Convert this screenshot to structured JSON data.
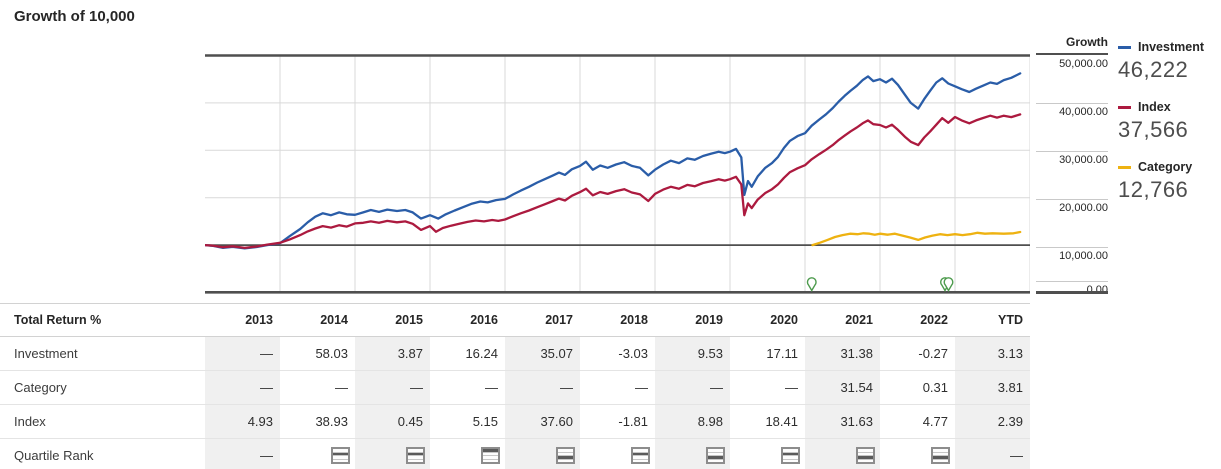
{
  "title": "Growth of 10,000",
  "colors": {
    "investment": "#2a5da8",
    "index": "#ac1a3f",
    "category": "#eeb211",
    "marker_green": "#4d9b4d",
    "dark_line": "#4f4f4f",
    "grid_line": "#d9d9d9",
    "shade": "#f0f0f0"
  },
  "axis": {
    "header": "Growth",
    "ticks": [
      "50,000.00",
      "40,000.00",
      "30,000.00",
      "20,000.00",
      "10,000.00",
      "0.00"
    ]
  },
  "legend": {
    "items": [
      {
        "name": "Investment",
        "value": "46,222",
        "color": "#2a5da8"
      },
      {
        "name": "Index",
        "value": "37,566",
        "color": "#ac1a3f"
      },
      {
        "name": "Category",
        "value": "12,766",
        "color": "#eeb211"
      }
    ]
  },
  "chart_data": {
    "type": "line",
    "title": "Growth of 10,000",
    "ylabel": "Growth",
    "ylim": [
      0,
      50000
    ],
    "y_ticks": [
      0,
      10000,
      20000,
      30000,
      40000,
      50000
    ],
    "baseline_value": 10000,
    "x_years": [
      2013,
      2014,
      2015,
      2016,
      2017,
      2018,
      2019,
      2020,
      2021,
      2022,
      2023
    ],
    "x_end": 2024,
    "legend_position": "right",
    "grid": true,
    "series": [
      {
        "name": "Investment",
        "color": "#2a5da8",
        "final_value": 46222,
        "points": [
          [
            2013.0,
            10000
          ],
          [
            2013.1,
            9850
          ],
          [
            2013.24,
            9400
          ],
          [
            2013.37,
            9650
          ],
          [
            2013.53,
            9300
          ],
          [
            2013.69,
            9600
          ],
          [
            2013.83,
            10000
          ],
          [
            2014.0,
            10400
          ],
          [
            2014.13,
            11900
          ],
          [
            2014.27,
            13400
          ],
          [
            2014.37,
            14800
          ],
          [
            2014.47,
            16000
          ],
          [
            2014.57,
            16700
          ],
          [
            2014.68,
            16300
          ],
          [
            2014.79,
            16900
          ],
          [
            2014.89,
            16500
          ],
          [
            2015.0,
            16400
          ],
          [
            2015.11,
            16900
          ],
          [
            2015.21,
            17400
          ],
          [
            2015.32,
            17000
          ],
          [
            2015.43,
            17500
          ],
          [
            2015.56,
            17200
          ],
          [
            2015.67,
            17400
          ],
          [
            2015.77,
            16900
          ],
          [
            2015.88,
            15600
          ],
          [
            2016.0,
            16300
          ],
          [
            2016.11,
            15600
          ],
          [
            2016.21,
            16500
          ],
          [
            2016.33,
            17300
          ],
          [
            2016.44,
            18000
          ],
          [
            2016.55,
            18700
          ],
          [
            2016.67,
            19200
          ],
          [
            2016.77,
            19000
          ],
          [
            2016.88,
            19500
          ],
          [
            2017.0,
            19750
          ],
          [
            2017.11,
            20700
          ],
          [
            2017.21,
            21500
          ],
          [
            2017.32,
            22300
          ],
          [
            2017.43,
            23200
          ],
          [
            2017.53,
            23900
          ],
          [
            2017.64,
            24700
          ],
          [
            2017.72,
            25300
          ],
          [
            2017.8,
            24800
          ],
          [
            2017.89,
            26000
          ],
          [
            2018.0,
            26700
          ],
          [
            2018.08,
            27600
          ],
          [
            2018.17,
            25900
          ],
          [
            2018.27,
            26800
          ],
          [
            2018.37,
            26300
          ],
          [
            2018.48,
            27000
          ],
          [
            2018.59,
            27500
          ],
          [
            2018.69,
            26700
          ],
          [
            2018.8,
            26300
          ],
          [
            2018.91,
            24700
          ],
          [
            2019.0,
            25900
          ],
          [
            2019.11,
            27000
          ],
          [
            2019.21,
            27800
          ],
          [
            2019.32,
            27300
          ],
          [
            2019.43,
            28300
          ],
          [
            2019.53,
            28000
          ],
          [
            2019.64,
            28800
          ],
          [
            2019.75,
            29300
          ],
          [
            2019.85,
            29700
          ],
          [
            2019.93,
            29400
          ],
          [
            2020.0,
            29700
          ],
          [
            2020.08,
            30300
          ],
          [
            2020.15,
            28500
          ],
          [
            2020.19,
            20600
          ],
          [
            2020.24,
            23500
          ],
          [
            2020.29,
            22300
          ],
          [
            2020.37,
            24500
          ],
          [
            2020.47,
            26300
          ],
          [
            2020.56,
            27300
          ],
          [
            2020.64,
            28600
          ],
          [
            2020.72,
            30500
          ],
          [
            2020.8,
            32000
          ],
          [
            2020.9,
            33000
          ],
          [
            2021.0,
            33600
          ],
          [
            2021.09,
            35200
          ],
          [
            2021.19,
            36500
          ],
          [
            2021.28,
            37600
          ],
          [
            2021.37,
            38900
          ],
          [
            2021.45,
            40300
          ],
          [
            2021.53,
            41500
          ],
          [
            2021.61,
            42600
          ],
          [
            2021.69,
            43600
          ],
          [
            2021.77,
            44800
          ],
          [
            2021.84,
            45600
          ],
          [
            2021.91,
            44600
          ],
          [
            2022.0,
            45000
          ],
          [
            2022.08,
            44300
          ],
          [
            2022.16,
            45100
          ],
          [
            2022.24,
            43800
          ],
          [
            2022.33,
            41800
          ],
          [
            2022.41,
            40000
          ],
          [
            2022.51,
            38800
          ],
          [
            2022.59,
            40800
          ],
          [
            2022.67,
            42600
          ],
          [
            2022.75,
            44300
          ],
          [
            2022.83,
            45200
          ],
          [
            2022.91,
            44100
          ],
          [
            2023.0,
            43500
          ],
          [
            2023.09,
            42900
          ],
          [
            2023.19,
            42300
          ],
          [
            2023.28,
            43000
          ],
          [
            2023.37,
            43600
          ],
          [
            2023.47,
            44300
          ],
          [
            2023.56,
            44000
          ],
          [
            2023.65,
            44800
          ],
          [
            2023.75,
            45300
          ],
          [
            2023.87,
            46222
          ]
        ]
      },
      {
        "name": "Index",
        "color": "#ac1a3f",
        "final_value": 37566,
        "points": [
          [
            2013.0,
            10000
          ],
          [
            2013.1,
            9900
          ],
          [
            2013.24,
            9550
          ],
          [
            2013.37,
            9750
          ],
          [
            2013.53,
            9400
          ],
          [
            2013.69,
            9700
          ],
          [
            2013.83,
            10100
          ],
          [
            2014.0,
            10490
          ],
          [
            2014.13,
            11200
          ],
          [
            2014.27,
            12100
          ],
          [
            2014.37,
            12900
          ],
          [
            2014.47,
            13500
          ],
          [
            2014.57,
            14000
          ],
          [
            2014.68,
            13700
          ],
          [
            2014.79,
            14200
          ],
          [
            2014.89,
            13900
          ],
          [
            2015.0,
            14580
          ],
          [
            2015.11,
            14700
          ],
          [
            2015.21,
            15000
          ],
          [
            2015.32,
            14700
          ],
          [
            2015.43,
            15100
          ],
          [
            2015.56,
            14800
          ],
          [
            2015.67,
            15000
          ],
          [
            2015.77,
            14500
          ],
          [
            2015.88,
            13200
          ],
          [
            2016.0,
            14000
          ],
          [
            2016.08,
            12800
          ],
          [
            2016.17,
            13600
          ],
          [
            2016.28,
            14100
          ],
          [
            2016.39,
            14500
          ],
          [
            2016.5,
            14900
          ],
          [
            2016.61,
            15200
          ],
          [
            2016.72,
            15000
          ],
          [
            2016.83,
            15300
          ],
          [
            2016.91,
            15100
          ],
          [
            2017.0,
            15400
          ],
          [
            2017.11,
            16100
          ],
          [
            2017.21,
            16700
          ],
          [
            2017.32,
            17300
          ],
          [
            2017.43,
            18000
          ],
          [
            2017.53,
            18600
          ],
          [
            2017.64,
            19300
          ],
          [
            2017.72,
            19800
          ],
          [
            2017.8,
            19400
          ],
          [
            2017.89,
            20400
          ],
          [
            2018.0,
            21190
          ],
          [
            2018.08,
            21900
          ],
          [
            2018.17,
            20500
          ],
          [
            2018.27,
            21200
          ],
          [
            2018.37,
            20800
          ],
          [
            2018.48,
            21400
          ],
          [
            2018.59,
            21800
          ],
          [
            2018.69,
            21100
          ],
          [
            2018.8,
            20700
          ],
          [
            2018.91,
            19300
          ],
          [
            2019.0,
            20800
          ],
          [
            2019.11,
            21700
          ],
          [
            2019.21,
            22300
          ],
          [
            2019.32,
            21900
          ],
          [
            2019.43,
            22700
          ],
          [
            2019.53,
            22400
          ],
          [
            2019.64,
            23100
          ],
          [
            2019.75,
            23500
          ],
          [
            2019.85,
            23900
          ],
          [
            2019.93,
            23600
          ],
          [
            2020.0,
            23900
          ],
          [
            2020.08,
            24400
          ],
          [
            2020.15,
            22800
          ],
          [
            2020.19,
            16300
          ],
          [
            2020.24,
            18800
          ],
          [
            2020.29,
            17800
          ],
          [
            2020.37,
            19600
          ],
          [
            2020.47,
            21000
          ],
          [
            2020.56,
            21800
          ],
          [
            2020.64,
            22800
          ],
          [
            2020.72,
            24200
          ],
          [
            2020.8,
            25400
          ],
          [
            2020.9,
            26200
          ],
          [
            2021.0,
            26850
          ],
          [
            2021.09,
            28100
          ],
          [
            2021.19,
            29200
          ],
          [
            2021.28,
            30100
          ],
          [
            2021.37,
            31100
          ],
          [
            2021.45,
            32200
          ],
          [
            2021.53,
            33100
          ],
          [
            2021.61,
            34000
          ],
          [
            2021.69,
            34800
          ],
          [
            2021.77,
            35700
          ],
          [
            2021.84,
            36300
          ],
          [
            2021.91,
            35500
          ],
          [
            2022.0,
            35340
          ],
          [
            2022.08,
            34800
          ],
          [
            2022.16,
            35400
          ],
          [
            2022.24,
            34300
          ],
          [
            2022.33,
            32900
          ],
          [
            2022.41,
            31800
          ],
          [
            2022.51,
            31100
          ],
          [
            2022.59,
            32700
          ],
          [
            2022.67,
            34000
          ],
          [
            2022.75,
            35400
          ],
          [
            2022.83,
            36800
          ],
          [
            2022.91,
            35800
          ],
          [
            2023.0,
            37020
          ],
          [
            2023.09,
            36300
          ],
          [
            2023.19,
            35700
          ],
          [
            2023.28,
            36300
          ],
          [
            2023.37,
            36800
          ],
          [
            2023.47,
            37300
          ],
          [
            2023.56,
            36900
          ],
          [
            2023.65,
            37300
          ],
          [
            2023.75,
            37000
          ],
          [
            2023.87,
            37566
          ]
        ]
      },
      {
        "name": "Category",
        "color": "#eeb211",
        "final_value": 12766,
        "points": [
          [
            2021.1,
            10000
          ],
          [
            2021.2,
            10500
          ],
          [
            2021.3,
            11100
          ],
          [
            2021.4,
            11700
          ],
          [
            2021.5,
            12100
          ],
          [
            2021.6,
            12400
          ],
          [
            2021.7,
            12300
          ],
          [
            2021.78,
            12500
          ],
          [
            2021.86,
            12400
          ],
          [
            2021.93,
            12200
          ],
          [
            2022.0,
            12400
          ],
          [
            2022.1,
            12200
          ],
          [
            2022.2,
            12400
          ],
          [
            2022.3,
            12000
          ],
          [
            2022.4,
            11600
          ],
          [
            2022.51,
            11100
          ],
          [
            2022.6,
            11600
          ],
          [
            2022.7,
            12000
          ],
          [
            2022.8,
            12300
          ],
          [
            2022.9,
            12100
          ],
          [
            2023.0,
            12300
          ],
          [
            2023.1,
            12100
          ],
          [
            2023.2,
            12300
          ],
          [
            2023.3,
            12600
          ],
          [
            2023.4,
            12400
          ],
          [
            2023.5,
            12500
          ],
          [
            2023.65,
            12400
          ],
          [
            2023.78,
            12500
          ],
          [
            2023.87,
            12766
          ]
        ]
      }
    ],
    "markers": [
      {
        "year": 2021.09,
        "shape": "pin",
        "color": "#4d9b4d",
        "count": 1
      },
      {
        "year": 2022.89,
        "shape": "pin",
        "color": "#4d9b4d",
        "count": 2
      }
    ]
  },
  "table": {
    "header_label": "Total Return %",
    "columns": [
      "2013",
      "2014",
      "2015",
      "2016",
      "2017",
      "2018",
      "2019",
      "2020",
      "2021",
      "2022",
      "YTD"
    ],
    "shaded_columns": [
      0,
      2,
      4,
      6,
      8,
      10
    ],
    "rows": [
      {
        "label": "Investment",
        "values": [
          "—",
          "58.03",
          "3.87",
          "16.24",
          "35.07",
          "-3.03",
          "9.53",
          "17.11",
          "31.38",
          "-0.27",
          "3.13"
        ]
      },
      {
        "label": "Category",
        "values": [
          "—",
          "—",
          "—",
          "—",
          "—",
          "—",
          "—",
          "—",
          "31.54",
          "0.31",
          "3.81"
        ]
      },
      {
        "label": "Index",
        "values": [
          "4.93",
          "38.93",
          "0.45",
          "5.15",
          "37.60",
          "-1.81",
          "8.98",
          "18.41",
          "31.63",
          "4.77",
          "2.39"
        ]
      }
    ],
    "quartile_row": {
      "label": "Quartile Rank",
      "values": [
        "—",
        2,
        2,
        1,
        3,
        2,
        3,
        2,
        3,
        3,
        "—"
      ]
    }
  }
}
